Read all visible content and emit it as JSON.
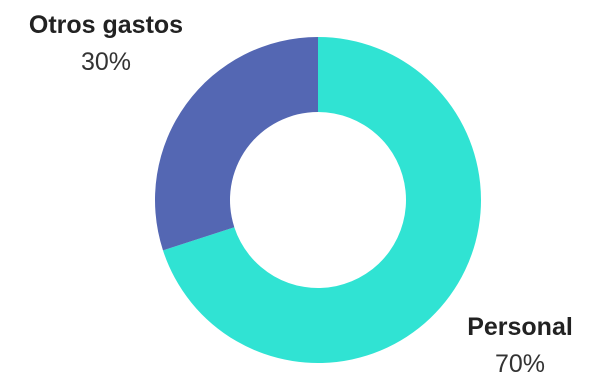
{
  "chart_data": {
    "type": "pie",
    "variant": "donut",
    "slices": [
      {
        "label": "Personal",
        "value": 70,
        "value_label": "70%",
        "color": "#30e3d3"
      },
      {
        "label": "Otros gastos",
        "value": 30,
        "value_label": "30%",
        "color": "#5467b3"
      }
    ],
    "legend": "none"
  }
}
